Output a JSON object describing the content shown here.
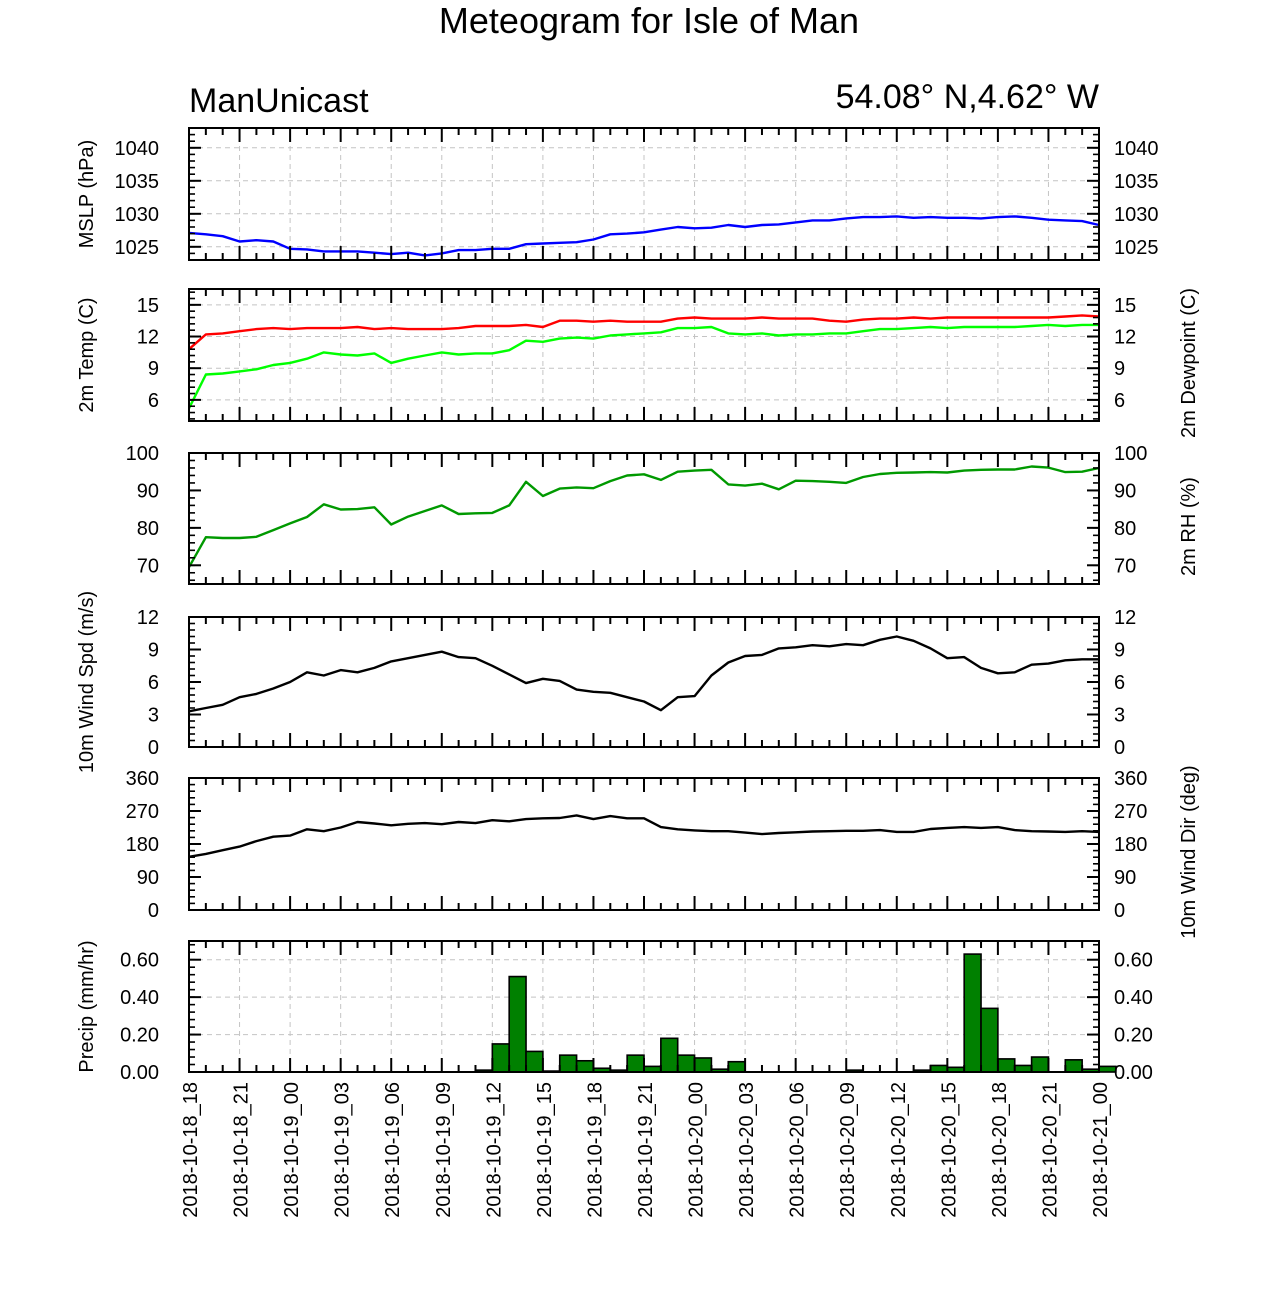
{
  "title": "Meteogram for Isle of Man",
  "model": "ManUnicast",
  "location": "54.08° N,4.62° W",
  "time_labels": [
    "2018-10-18_18",
    "2018-10-18_21",
    "2018-10-19_00",
    "2018-10-19_03",
    "2018-10-19_06",
    "2018-10-19_09",
    "2018-10-19_12",
    "2018-10-19_15",
    "2018-10-19_18",
    "2018-10-19_21",
    "2018-10-20_00",
    "2018-10-20_03",
    "2018-10-20_06",
    "2018-10-20_09",
    "2018-10-20_12",
    "2018-10-20_15",
    "2018-10-20_18",
    "2018-10-20_21",
    "2018-10-21_00"
  ],
  "colors": {
    "mslp": "#0000ff",
    "temp": "#ff0000",
    "dewpoint": "#00ff00",
    "rh": "#009900",
    "wind": "#000000",
    "precip": "#008000"
  },
  "chart_data": [
    {
      "type": "line",
      "ylabel_left": "MSLP (hPa)",
      "ylabel_right": "",
      "ylim": [
        1023,
        1043
      ],
      "yticks": [
        1025,
        1030,
        1035,
        1040
      ],
      "ytick_labels": [
        "1025",
        "1030",
        "1035",
        "1040"
      ],
      "grid": true,
      "series": [
        {
          "color_key": "mslp",
          "values": [
            1027.1,
            1026.9,
            1026.6,
            1025.8,
            1026.0,
            1025.8,
            1024.7,
            1024.6,
            1024.3,
            1024.3,
            1024.3,
            1024.1,
            1023.9,
            1024.1,
            1023.7,
            1024.0,
            1024.5,
            1024.5,
            1024.7,
            1024.7,
            1025.4,
            1025.5,
            1025.6,
            1025.7,
            1026.1,
            1026.9,
            1027.0,
            1027.2,
            1027.6,
            1028.0,
            1027.8,
            1027.9,
            1028.3,
            1028.0,
            1028.3,
            1028.4,
            1028.7,
            1029.0,
            1029.0,
            1029.3,
            1029.5,
            1029.5,
            1029.6,
            1029.4,
            1029.5,
            1029.4,
            1029.4,
            1029.3,
            1029.5,
            1029.6,
            1029.4,
            1029.1,
            1029.0,
            1028.9,
            1028.3
          ]
        }
      ]
    },
    {
      "type": "line",
      "ylabel_left": "2m Temp (C)",
      "ylabel_right": "2m Dewpoint (C)",
      "ylim": [
        4,
        16.5
      ],
      "yticks": [
        6,
        9,
        12,
        15
      ],
      "ytick_labels": [
        "6",
        "9",
        "12",
        "15"
      ],
      "grid": true,
      "series": [
        {
          "color_key": "temp",
          "values": [
            10.8,
            12.2,
            12.3,
            12.5,
            12.7,
            12.8,
            12.7,
            12.8,
            12.8,
            12.8,
            12.9,
            12.7,
            12.8,
            12.7,
            12.7,
            12.7,
            12.8,
            13.0,
            13.0,
            13.0,
            13.1,
            12.9,
            13.5,
            13.5,
            13.4,
            13.5,
            13.4,
            13.4,
            13.4,
            13.7,
            13.8,
            13.7,
            13.7,
            13.7,
            13.8,
            13.7,
            13.7,
            13.7,
            13.5,
            13.4,
            13.6,
            13.7,
            13.7,
            13.8,
            13.7,
            13.8,
            13.8,
            13.8,
            13.8,
            13.8,
            13.8,
            13.8,
            13.9,
            14.0,
            13.9
          ]
        },
        {
          "color_key": "dewpoint",
          "values": [
            5.2,
            8.4,
            8.5,
            8.7,
            8.9,
            9.3,
            9.5,
            9.9,
            10.5,
            10.3,
            10.2,
            10.4,
            9.5,
            9.9,
            10.2,
            10.5,
            10.3,
            10.4,
            10.4,
            10.7,
            11.6,
            11.5,
            11.8,
            11.9,
            11.8,
            12.1,
            12.2,
            12.3,
            12.4,
            12.8,
            12.8,
            12.9,
            12.3,
            12.2,
            12.3,
            12.1,
            12.2,
            12.2,
            12.3,
            12.3,
            12.5,
            12.7,
            12.7,
            12.8,
            12.9,
            12.8,
            12.9,
            12.9,
            12.9,
            12.9,
            13.0,
            13.1,
            13.0,
            13.1,
            13.1
          ]
        }
      ]
    },
    {
      "type": "line",
      "ylabel_left": "",
      "ylabel_right": "2m RH (%)",
      "ylim": [
        65,
        100
      ],
      "yticks": [
        70,
        80,
        90,
        100
      ],
      "ytick_labels": [
        "70",
        "80",
        "90",
        "100"
      ],
      "grid": false,
      "series": [
        {
          "color_key": "rh",
          "values": [
            69.5,
            77.5,
            77.3,
            77.3,
            77.6,
            79.4,
            81.2,
            82.9,
            86.3,
            84.9,
            85.0,
            85.5,
            80.9,
            83.0,
            84.5,
            86.0,
            83.7,
            83.9,
            84.0,
            86.0,
            92.3,
            88.5,
            90.5,
            90.8,
            90.6,
            92.5,
            94.0,
            94.3,
            92.8,
            95.0,
            95.3,
            95.5,
            91.6,
            91.3,
            91.8,
            90.3,
            92.6,
            92.5,
            92.3,
            92.0,
            93.6,
            94.4,
            94.7,
            94.8,
            94.9,
            94.8,
            95.3,
            95.5,
            95.6,
            95.6,
            96.4,
            96.1,
            94.9,
            95.0,
            96.0
          ]
        }
      ]
    },
    {
      "type": "line",
      "ylabel_left": "10m Wind Spd (m/s)",
      "ylabel_right": "",
      "ylim": [
        0,
        12
      ],
      "yticks": [
        0,
        3,
        6,
        9,
        12
      ],
      "ytick_labels": [
        "0",
        "3",
        "6",
        "9",
        "12"
      ],
      "grid": false,
      "series": [
        {
          "color_key": "wind",
          "values": [
            3.3,
            3.6,
            3.9,
            4.6,
            4.9,
            5.4,
            6.0,
            6.9,
            6.6,
            7.1,
            6.9,
            7.3,
            7.9,
            8.2,
            8.5,
            8.8,
            8.3,
            8.2,
            7.5,
            6.7,
            5.9,
            6.3,
            6.1,
            5.3,
            5.1,
            5.0,
            4.6,
            4.2,
            3.4,
            4.6,
            4.7,
            6.6,
            7.8,
            8.4,
            8.5,
            9.1,
            9.2,
            9.4,
            9.3,
            9.5,
            9.4,
            9.9,
            10.2,
            9.8,
            9.1,
            8.2,
            8.3,
            7.3,
            6.8,
            6.9,
            7.6,
            7.7,
            8.0,
            8.1,
            8.1
          ]
        }
      ]
    },
    {
      "type": "line",
      "ylabel_left": "",
      "ylabel_right": "10m Wind Dir (deg)",
      "ylim": [
        0,
        360
      ],
      "yticks": [
        0,
        90,
        180,
        270,
        360
      ],
      "ytick_labels": [
        "0",
        "90",
        "180",
        "270",
        "360"
      ],
      "grid": false,
      "series": [
        {
          "color_key": "wind",
          "values": [
            145,
            153,
            163,
            173,
            188,
            200,
            203,
            220,
            215,
            225,
            240,
            236,
            231,
            235,
            237,
            234,
            240,
            237,
            245,
            242,
            248,
            250,
            251,
            258,
            248,
            256,
            250,
            250,
            226,
            220,
            217,
            215,
            215,
            211,
            207,
            210,
            212,
            214,
            215,
            216,
            216,
            218,
            213,
            213,
            221,
            224,
            226,
            224,
            226,
            218,
            215,
            214,
            213,
            215,
            213
          ]
        }
      ]
    },
    {
      "type": "bar",
      "ylabel_left": "Precip (mm/hr)",
      "ylabel_right": "",
      "ylim": [
        0,
        0.7
      ],
      "yticks": [
        0,
        0.2,
        0.4,
        0.6
      ],
      "ytick_labels": [
        "0.00",
        "0.20",
        "0.40",
        "0.60"
      ],
      "grid": true,
      "series": [
        {
          "color_key": "precip",
          "values": [
            0,
            0,
            0,
            0,
            0,
            0,
            0,
            0,
            0,
            0,
            0,
            0,
            0,
            0,
            0,
            0,
            0,
            0.01,
            0.15,
            0.51,
            0.11,
            0.005,
            0.09,
            0.06,
            0.02,
            0.01,
            0.09,
            0.03,
            0.18,
            0.09,
            0.075,
            0.015,
            0.055,
            0,
            0,
            0,
            0,
            0,
            0,
            0.01,
            0,
            0,
            0,
            0.01,
            0.035,
            0.025,
            0.63,
            0.34,
            0.07,
            0.035,
            0.08,
            0,
            0.065,
            0.015,
            0.03
          ]
        }
      ]
    }
  ]
}
